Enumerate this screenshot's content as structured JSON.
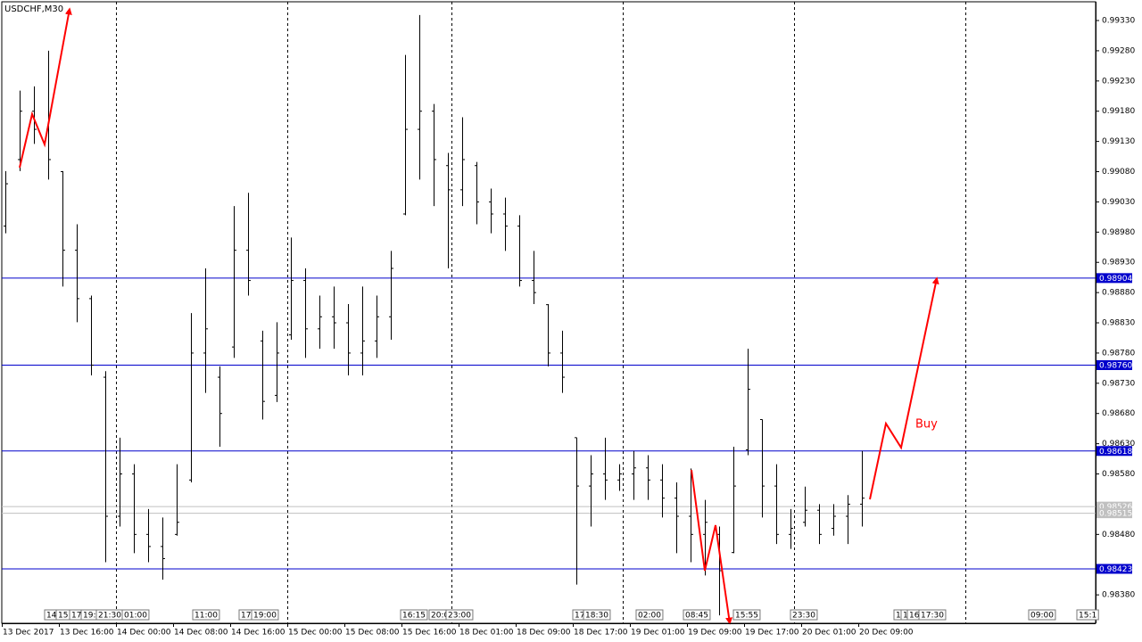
{
  "chart_data": {
    "type": "ohlc",
    "title": "USDCHF,M30",
    "annotation": "Buy",
    "color": "#000000",
    "ylim": [
      0.98333,
      0.99361
    ],
    "yticks": [
      {
        "value": 0.9933,
        "label": "0.99330"
      },
      {
        "value": 0.9928,
        "label": "0.99280"
      },
      {
        "value": 0.9923,
        "label": "0.99230"
      },
      {
        "value": 0.9918,
        "label": "0.99180"
      },
      {
        "value": 0.9913,
        "label": "0.99130"
      },
      {
        "value": 0.9908,
        "label": "0.99080"
      },
      {
        "value": 0.9903,
        "label": "0.99030"
      },
      {
        "value": 0.9898,
        "label": "0.98980"
      },
      {
        "value": 0.9893,
        "label": "0.98930"
      },
      {
        "value": 0.9888,
        "label": "0.98880"
      },
      {
        "value": 0.9883,
        "label": "0.98830"
      },
      {
        "value": 0.9878,
        "label": "0.98780"
      },
      {
        "value": 0.9873,
        "label": "0.98730"
      },
      {
        "value": 0.9868,
        "label": "0.98680"
      },
      {
        "value": 0.9863,
        "label": "0.98630"
      },
      {
        "value": 0.9858,
        "label": "0.98580"
      },
      {
        "value": 0.9848,
        "label": "0.98480"
      },
      {
        "value": 0.9838,
        "label": "0.98380"
      }
    ],
    "levels": [
      {
        "value": 0.98904,
        "color": "#0000cc"
      },
      {
        "value": {
          "value": 0.9876,
          "label": "0.98760"
        },
        "color": "#0000cc"
      },
      {
        "value": 0.98618,
        "color": "#0000cc"
      },
      {
        "value": 0.98423,
        "color": "#0000cc"
      },
      {
        "value": 0.98526,
        "color": "#c0c0c0"
      },
      {
        "value": 0.98515,
        "color": "#c0c0c0"
      }
    ],
    "categories": [
      "13 Dec 2017",
      null,
      null,
      null,
      "13 Dec 16:00",
      null,
      null,
      null,
      "14 Dec 00:00",
      null,
      null,
      null,
      "14 Dec 08:00",
      null,
      null,
      null,
      "14 Dec 16:00",
      null,
      null,
      null,
      "15 Dec 00:00",
      null,
      null,
      null,
      "15 Dec 08:00",
      null,
      null,
      null,
      "15 Dec 16:00",
      null,
      null,
      null,
      "18 Dec 01:00",
      null,
      null,
      null,
      "18 Dec 09:00",
      null,
      null,
      null,
      "18 Dec 17:00",
      null,
      null,
      null,
      "19 Dec 01:00",
      null,
      null,
      null,
      "19 Dec 09:00",
      null,
      null,
      null,
      "19 Dec 17:00",
      null,
      null,
      null,
      "20 Dec 01:00",
      null,
      null,
      null,
      "20 Dec 09:00"
    ],
    "open": [
      0.9899,
      0.991,
      0.9918,
      0.9915,
      0.9908,
      0.9895,
      0.9887,
      0.9874,
      0.9851,
      0.9858,
      0.9848,
      0.9846,
      0.9848,
      0.9857,
      0.9878,
      0.9874,
      0.9879,
      0.9895,
      0.988,
      0.9871,
      0.9881,
      0.989,
      0.9882,
      0.9884,
      0.9883,
      0.9878,
      0.988,
      0.9884,
      0.9901,
      0.9915,
      0.9918,
      0.9909,
      0.9905,
      0.9909,
      0.9903,
      0.9901,
      0.9899,
      0.989,
      0.9886,
      0.9878,
      0.9864,
      0.9856,
      0.9858,
      0.9857,
      0.9858,
      0.9859,
      0.9857,
      0.9854,
      0.9851,
      0.9848,
      0.9848,
      0.9845,
      0.9862,
      0.9867,
      0.9856,
      0.9848,
      0.985,
      0.9852,
      0.9849,
      0.9851,
      0.9853
    ],
    "high": [
      0.99081,
      0.99214,
      0.99221,
      0.9928,
      0.99081,
      0.98993,
      0.98875,
      0.9875,
      0.9864,
      0.98596,
      0.98522,
      0.98508,
      0.98596,
      0.98846,
      0.9892,
      0.98758,
      0.99023,
      0.99045,
      0.98817,
      0.98831,
      0.98971,
      0.9892,
      0.98875,
      0.9889,
      0.98861,
      0.9889,
      0.98875,
      0.98949,
      0.99273,
      0.99339,
      0.99192,
      0.99111,
      0.9917,
      0.99096,
      0.99052,
      0.99037,
      0.99008,
      0.98949,
      0.98861,
      0.98817,
      0.9864,
      0.98611,
      0.9864,
      0.98596,
      0.98618,
      0.98611,
      0.98596,
      0.98566,
      0.98589,
      0.98537,
      0.98493,
      0.98625,
      0.98787,
      0.9867,
      0.98596,
      0.98522,
      0.98559,
      0.9853,
      0.9853,
      0.98545,
      0.98618
    ],
    "low": [
      0.98978,
      0.99081,
      0.99126,
      0.99067,
      0.9889,
      0.98831,
      0.98743,
      0.98434,
      0.98493,
      0.98449,
      0.98434,
      0.98405,
      0.98478,
      0.98566,
      0.98714,
      0.98625,
      0.98772,
      0.98875,
      0.9867,
      0.98699,
      0.98802,
      0.98772,
      0.98787,
      0.98787,
      0.98743,
      0.98743,
      0.98772,
      0.98802,
      0.99008,
      0.99067,
      0.99023,
      0.9892,
      0.99023,
      0.98993,
      0.98978,
      0.98949,
      0.9889,
      0.98861,
      0.98758,
      0.98714,
      0.98397,
      0.98493,
      0.98537,
      0.98552,
      0.98537,
      0.98537,
      0.98508,
      0.98449,
      0.98434,
      0.98412,
      0.98346,
      0.98449,
      0.98611,
      0.98508,
      0.98464,
      0.98456,
      0.98493,
      0.98464,
      0.98478,
      0.98464,
      0.98493
    ],
    "close": [
      0.9906,
      0.9918,
      0.9915,
      0.991,
      0.9895,
      0.9887,
      0.9876,
      0.9851,
      0.9858,
      0.9848,
      0.9846,
      0.9844,
      0.985,
      0.9878,
      0.9882,
      0.9868,
      0.9895,
      0.989,
      0.987,
      0.9878,
      0.989,
      0.9882,
      0.9884,
      0.9883,
      0.9878,
      0.988,
      0.9884,
      0.9892,
      0.9915,
      0.9918,
      0.991,
      0.9905,
      0.991,
      0.9903,
      0.9901,
      0.9899,
      0.989,
      0.9888,
      0.9878,
      0.9874,
      0.9856,
      0.9858,
      0.9857,
      0.9858,
      0.9859,
      0.9857,
      0.9854,
      0.9851,
      0.9848,
      0.985,
      0.9842,
      0.9856,
      0.9872,
      0.9856,
      0.9848,
      0.9849,
      0.9852,
      0.9848,
      0.9851,
      0.9853,
      0.9854
    ],
    "time_tags": [
      "14",
      "15:",
      "17",
      "19:",
      "21:30",
      "01:00",
      "11:00",
      "17",
      "19:00",
      "16:15",
      "20:0",
      "23:00",
      "17",
      "18:30",
      "02:00",
      "08:45",
      "15:55",
      "23:30",
      "1",
      "1",
      "16",
      "17:30",
      "09:00",
      "15:1"
    ]
  }
}
